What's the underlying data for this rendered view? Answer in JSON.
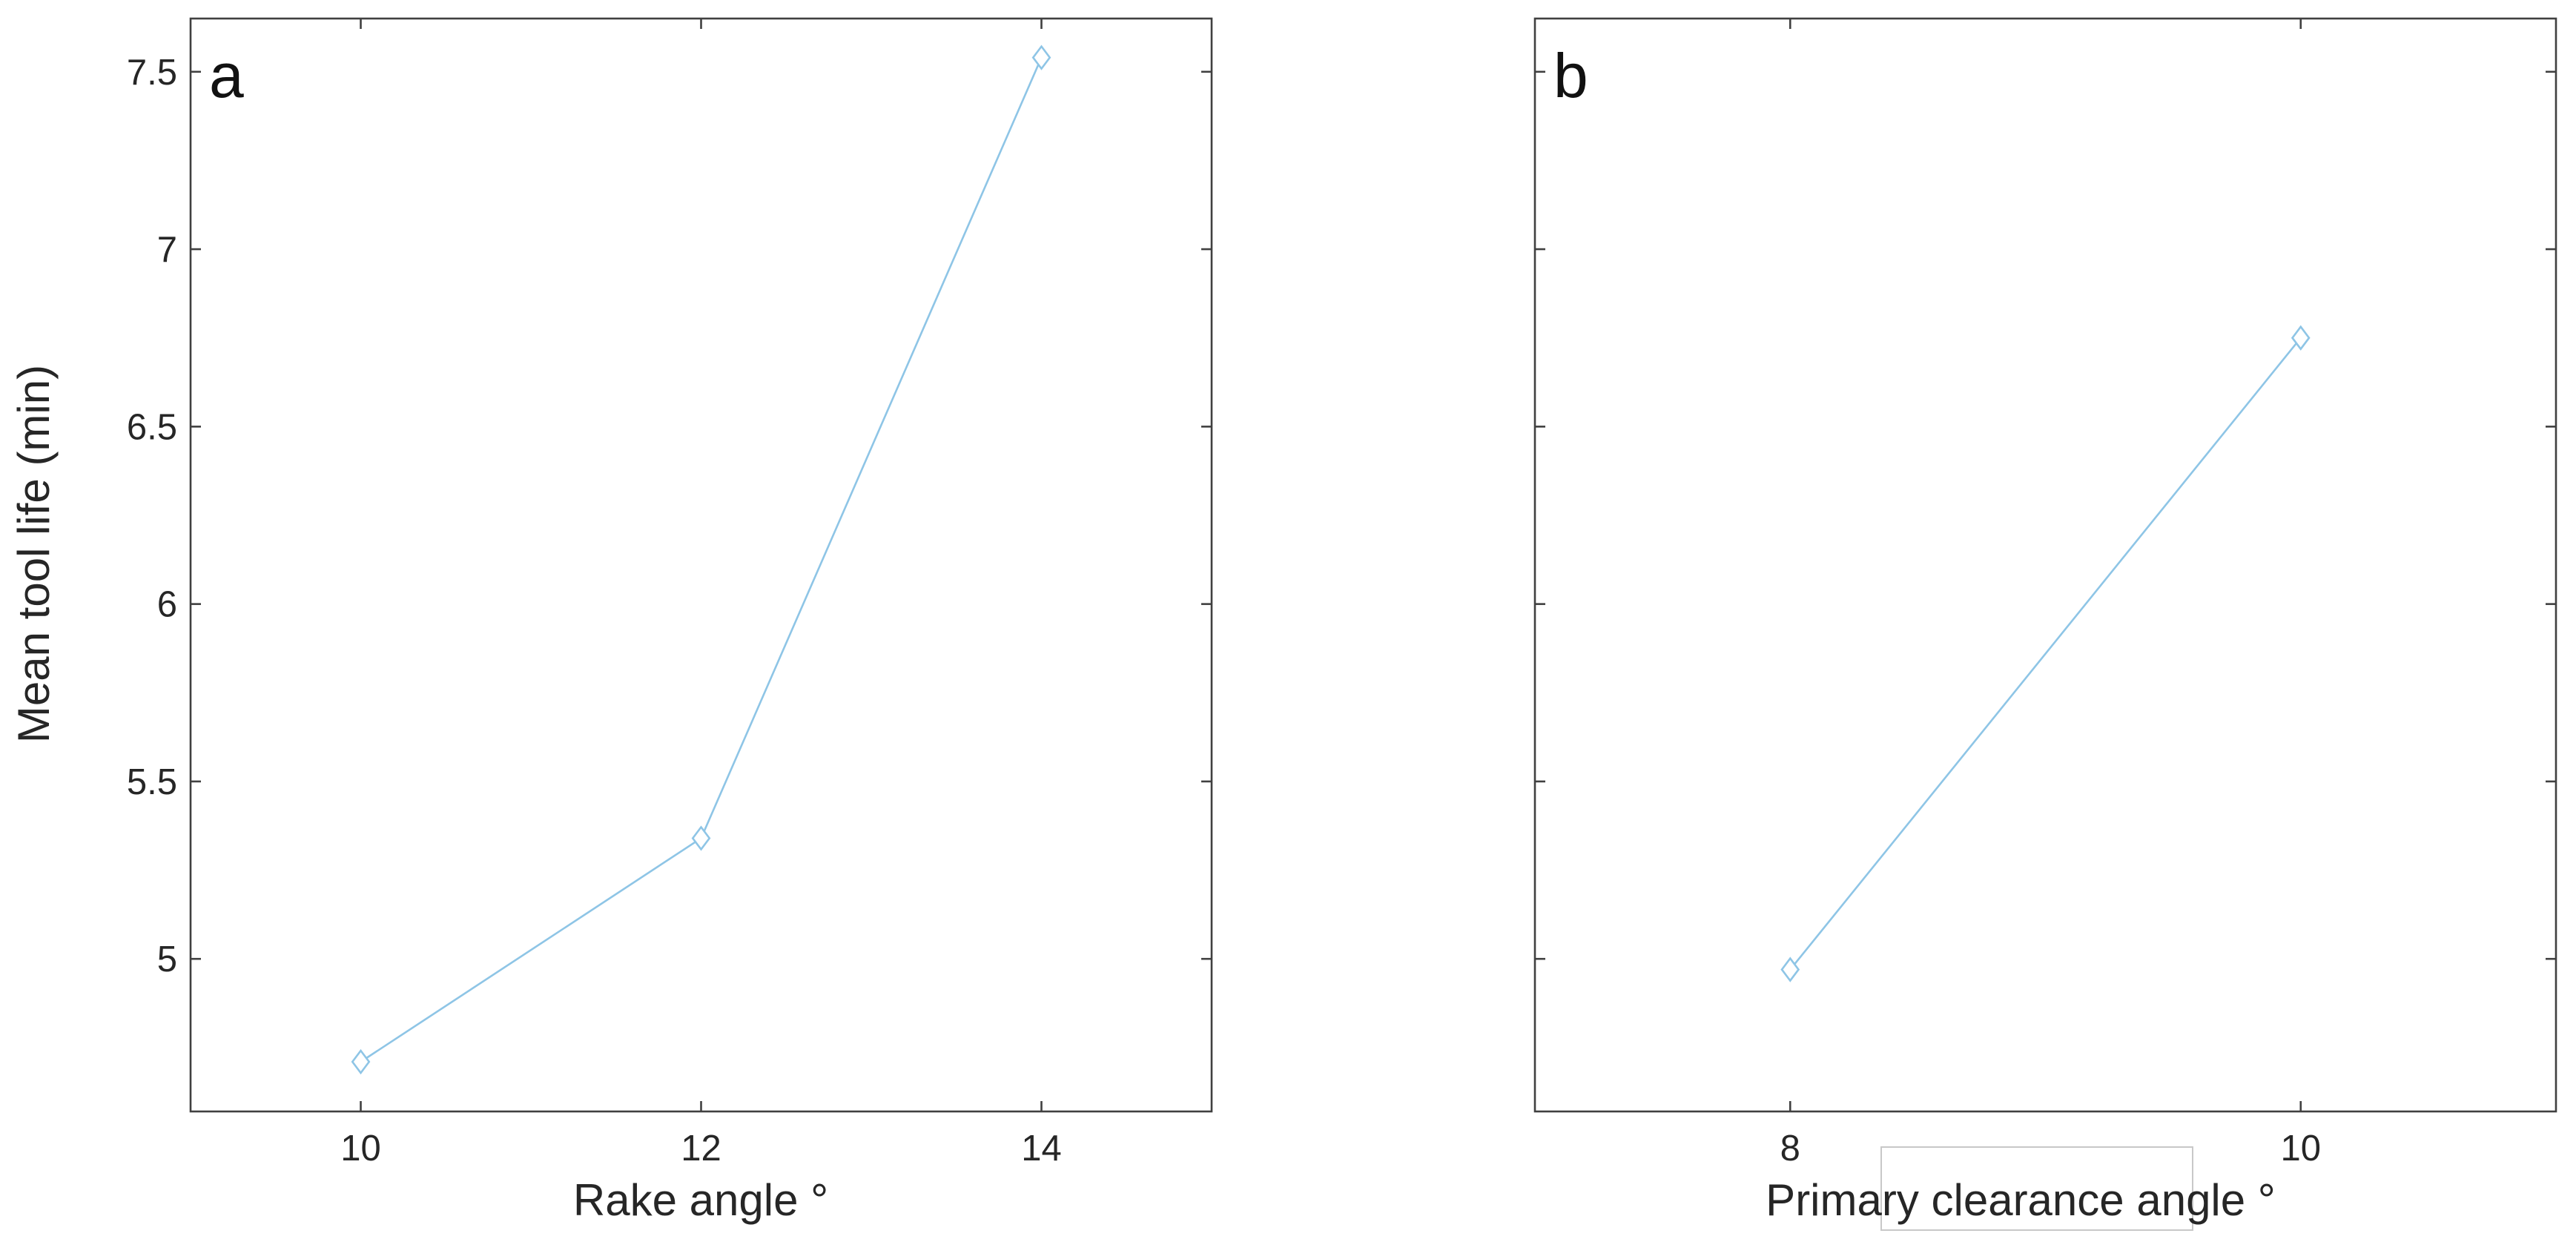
{
  "chart_data": [
    {
      "type": "line",
      "panel_label": "a",
      "xlabel": "Rake angle °",
      "ylabel": "Mean tool life (min)",
      "x": [
        10,
        12,
        14
      ],
      "xticks": [
        "10",
        "12",
        "14"
      ],
      "xlim": [
        9,
        15
      ],
      "ylim": [
        4.57,
        7.65
      ],
      "yticks": [
        "5",
        "5.5",
        "6",
        "6.5",
        "7",
        "7.5"
      ],
      "grid": false,
      "series": [
        {
          "values": [
            4.71,
            5.34,
            7.54
          ],
          "color": "#8ec5e6",
          "marker": "diamond"
        }
      ]
    },
    {
      "type": "line",
      "panel_label": "b",
      "xlabel": "Primary clearance angle °",
      "ylabel": "",
      "x": [
        8,
        10
      ],
      "xticks": [
        "8",
        "10"
      ],
      "xlim": [
        7,
        11
      ],
      "ylim": [
        4.57,
        7.65
      ],
      "yticks": [],
      "grid": false,
      "series": [
        {
          "values": [
            4.97,
            6.75
          ],
          "color": "#8ec5e6",
          "marker": "diamond"
        }
      ]
    }
  ]
}
